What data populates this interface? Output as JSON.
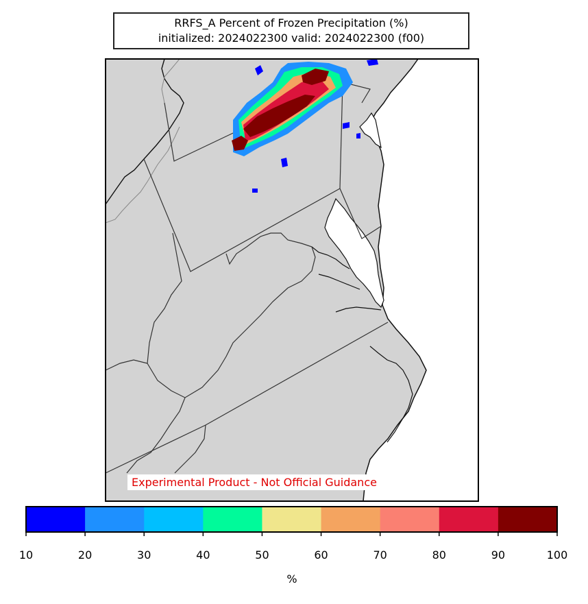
{
  "title": {
    "line1": "RRFS_A Percent of Frozen Precipitation (%)",
    "line2": "initialized: 2024022300 valid: 2024022300 (f00)"
  },
  "disclaimer": "Experimental Product - Not Official Guidance",
  "colorbar": {
    "unit": "%",
    "ticks": [
      "10",
      "20",
      "30",
      "40",
      "50",
      "60",
      "70",
      "80",
      "90",
      "100"
    ],
    "colors": [
      "#0000ff",
      "#1e90ff",
      "#00bfff",
      "#00fa9a",
      "#f0e68c",
      "#f4a460",
      "#fa8072",
      "#dc143c",
      "#800000"
    ]
  },
  "map": {
    "land_color": "#d3d3d3",
    "water_color": "#ffffff"
  }
}
